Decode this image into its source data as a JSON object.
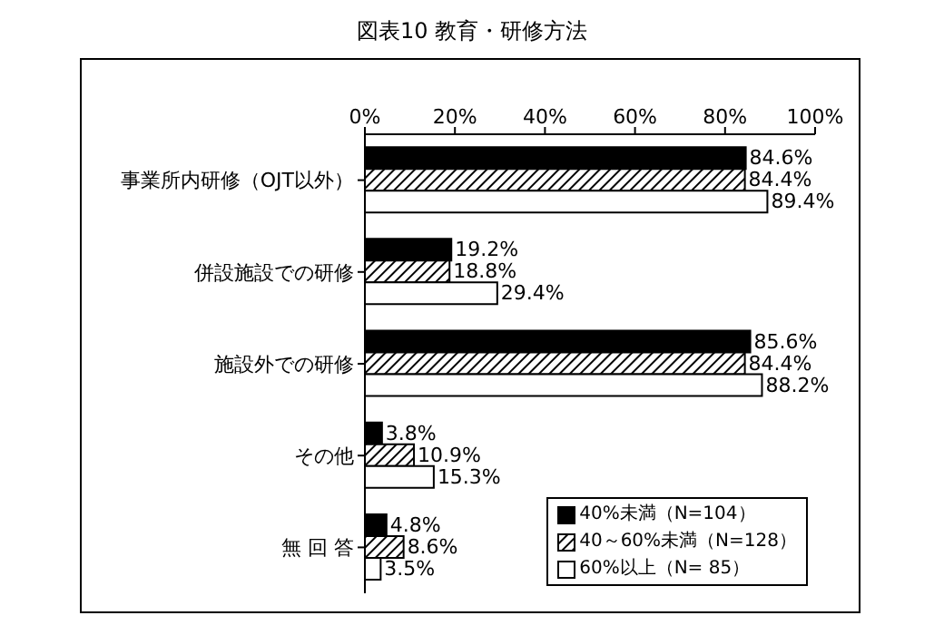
{
  "chart_data": {
    "type": "bar",
    "orientation": "horizontal",
    "title": "図表10 教育・研修方法",
    "categories": [
      "事業所内研修（OJT以外）",
      "併設施設での研修",
      "施設外での研修",
      "その他",
      "無 回 答"
    ],
    "series": [
      {
        "name": "40%未満（N=104）",
        "color": "#000000",
        "values": [
          84.6,
          19.2,
          85.6,
          3.8,
          4.8
        ],
        "value_labels": [
          "84.6%",
          "19.2%",
          "85.6%",
          "3.8%",
          "4.8%"
        ]
      },
      {
        "name": "40～60%未満（N=128）",
        "color": "#000000",
        "values": [
          84.4,
          18.8,
          84.4,
          10.9,
          8.6
        ],
        "value_labels": [
          "84.4%",
          "18.8%",
          "84.4%",
          "10.9%",
          "8.6%"
        ]
      },
      {
        "name": "60%以上（N=  85）",
        "color": "#ffffff",
        "values": [
          89.4,
          29.4,
          88.2,
          15.3,
          3.5
        ],
        "value_labels": [
          "89.4%",
          "29.4%",
          "88.2%",
          "15.3%",
          "3.5%"
        ]
      }
    ],
    "xlim": [
      0,
      100
    ],
    "xticks": [
      {
        "value": 0,
        "label": "0%"
      },
      {
        "value": 20,
        "label": "20%"
      },
      {
        "value": 40,
        "label": "40%"
      },
      {
        "value": 60,
        "label": "60%"
      },
      {
        "value": 80,
        "label": "80%"
      },
      {
        "value": 100,
        "label": "100%"
      }
    ],
    "grid": false,
    "legend": "bottom right"
  }
}
